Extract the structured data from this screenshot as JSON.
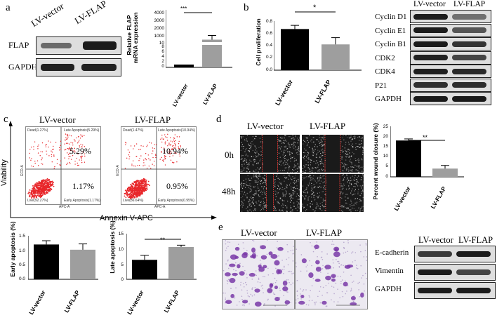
{
  "panels": {
    "a": "a",
    "b": "b",
    "c": "c",
    "d": "d",
    "e": "e"
  },
  "groups": {
    "vector": "LV-vector",
    "flap": "LV-FLAP"
  },
  "panel_a": {
    "blot_rows": [
      "FLAP",
      "GAPDH"
    ],
    "chart_ylabel_1": "Relative FLAP",
    "chart_ylabel_2": "mRNA expression",
    "sig": "***",
    "yticks_top": [
      "4000",
      "3000",
      "2000",
      "1000",
      "10"
    ],
    "yticks_bottom": [
      "8",
      "6",
      "4",
      "2",
      "0"
    ]
  },
  "panel_b": {
    "ylabel": "Cell proliferation",
    "sig": "*",
    "yticks": [
      "0.8",
      "0.6",
      "0.4",
      "0.2",
      "0.0"
    ],
    "blot_rows": [
      "Cyclin D1",
      "Cyclin E1",
      "Cyclin B1",
      "CDK2",
      "CDK4",
      "P21",
      "GAPDH"
    ]
  },
  "panel_c": {
    "yaxis": "Viability",
    "xaxis": "Annexin V-APC",
    "vector_quads": {
      "late": "5.29%",
      "early": "1.17%"
    },
    "flap_quads": {
      "late": "10.94%",
      "early": "0.95%"
    },
    "vector_corners": {
      "dead": "Dead(1.27%)",
      "late": "Late Apoptosis(5.29%)",
      "live": "Live(92.27%)",
      "early": "Early Apoptosis(1.17%)"
    },
    "flap_corners": {
      "dead": "Dead(1.47%)",
      "late": "Late Apoptosis(10.94%)",
      "live": "Live(86.64%)",
      "early": "Early Apoptosis(0.95%)"
    },
    "axis_y": "ECD-A",
    "axis_x": "APC-A",
    "early_ylabel": "Early apoptosis (%)",
    "late_ylabel": "Late apoptosis (%)",
    "early_yticks": [
      "1.5",
      "1.0",
      "0.5",
      "0.0"
    ],
    "late_yticks": [
      "15",
      "10",
      "5",
      "0"
    ],
    "late_sig": "**"
  },
  "panel_d": {
    "rows": [
      "0h",
      "48h"
    ],
    "ylabel": "Percent wound closure (%)",
    "yticks": [
      "25",
      "20",
      "15",
      "10",
      "5",
      "0"
    ],
    "sig": "**"
  },
  "panel_e": {
    "blot_rows": [
      "E-cadherin",
      "Vimentin",
      "GAPDH"
    ]
  },
  "chart_data": [
    {
      "type": "bar",
      "title": "",
      "ylabel": "Relative FLAP mRNA expression",
      "categories": [
        "LV-vector",
        "LV-FLAP"
      ],
      "values": [
        1,
        3400
      ],
      "ylim": [
        0,
        4000
      ],
      "significance": "***",
      "colors": {
        "LV-vector": "#000000",
        "LV-FLAP": "#9e9e9e"
      }
    },
    {
      "type": "bar",
      "title": "",
      "ylabel": "Cell proliferation",
      "categories": [
        "LV-vector",
        "LV-FLAP"
      ],
      "values": [
        0.67,
        0.42
      ],
      "errors": [
        0.06,
        0.11
      ],
      "ylim": [
        0,
        0.8
      ],
      "significance": "*"
    },
    {
      "type": "bar",
      "title": "",
      "ylabel": "Early apoptosis (%)",
      "categories": [
        "LV-vector",
        "LV-FLAP"
      ],
      "values": [
        1.2,
        1.02
      ],
      "errors": [
        0.13,
        0.2
      ],
      "ylim": [
        0,
        1.5
      ]
    },
    {
      "type": "bar",
      "title": "",
      "ylabel": "Late apoptosis (%)",
      "categories": [
        "LV-vector",
        "LV-FLAP"
      ],
      "values": [
        6.5,
        10.8
      ],
      "errors": [
        1.5,
        0.6
      ],
      "ylim": [
        0,
        15
      ],
      "significance": "**"
    },
    {
      "type": "bar",
      "title": "",
      "ylabel": "Percent wound closure (%)",
      "categories": [
        "LV-vector",
        "LV-FLAP"
      ],
      "values": [
        18.5,
        4.2
      ],
      "errors": [
        0.8,
        1.6
      ],
      "ylim": [
        0,
        25
      ],
      "significance": "**"
    }
  ]
}
